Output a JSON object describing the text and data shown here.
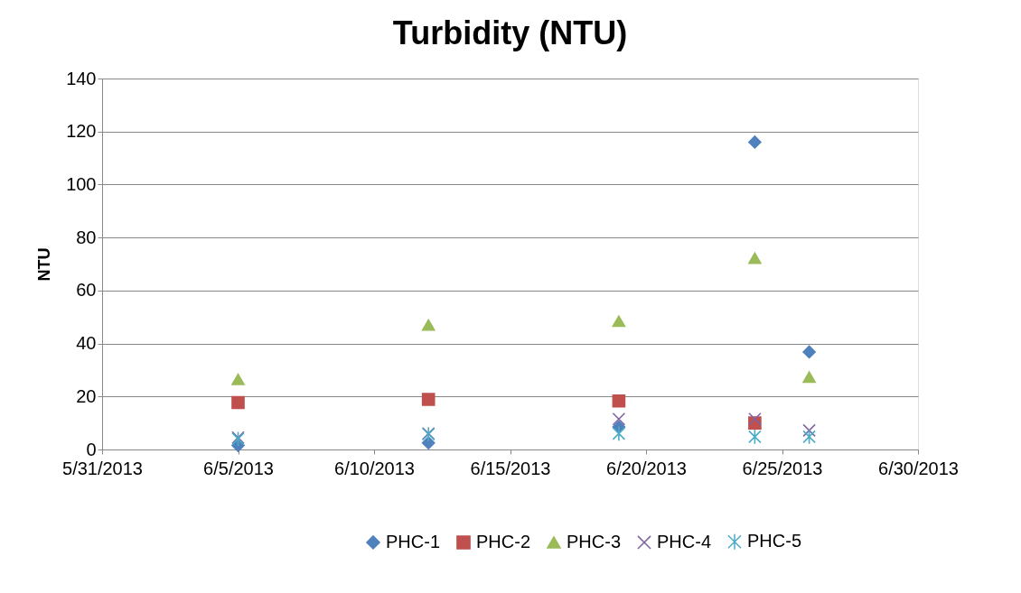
{
  "chart_data": {
    "type": "scatter",
    "title": "Turbidity (NTU)",
    "ylabel": "NTU",
    "x": [
      "2013-06-05",
      "2013-06-12",
      "2013-06-19",
      "2013-06-24",
      "2013-06-26"
    ],
    "series": [
      {
        "name": "PHC-1",
        "color": "#4f81bd",
        "values": [
          1.5,
          2.5,
          8.5,
          116,
          36.8
        ]
      },
      {
        "name": "PHC-2",
        "color": "#c0504d",
        "values": [
          17.7,
          18.9,
          18.3,
          10,
          null
        ]
      },
      {
        "name": "PHC-3",
        "color": "#9bbb59",
        "values": [
          26.5,
          47,
          48.4,
          72.2,
          27.3
        ]
      },
      {
        "name": "PHC-4",
        "color": "#8064a2",
        "values": [
          4.5,
          6,
          11.5,
          11.5,
          7.2
        ]
      },
      {
        "name": "PHC-5",
        "color": "#4bacc6",
        "values": [
          4,
          5.8,
          6,
          4.8,
          4.8
        ]
      }
    ],
    "xlim": [
      "2013-05-31",
      "2013-06-30"
    ],
    "xticks": [
      {
        "value": "2013-05-31",
        "label": "5/31/2013"
      },
      {
        "value": "2013-06-05",
        "label": "6/5/2013"
      },
      {
        "value": "2013-06-10",
        "label": "6/10/2013"
      },
      {
        "value": "2013-06-15",
        "label": "6/15/2013"
      },
      {
        "value": "2013-06-20",
        "label": "6/20/2013"
      },
      {
        "value": "2013-06-25",
        "label": "6/25/2013"
      },
      {
        "value": "2013-06-30",
        "label": "6/30/2013"
      }
    ],
    "ylim": [
      0,
      140
    ],
    "yticks": [
      0,
      20,
      40,
      60,
      80,
      100,
      120,
      140
    ],
    "grid": "y",
    "legend": "bottom"
  }
}
